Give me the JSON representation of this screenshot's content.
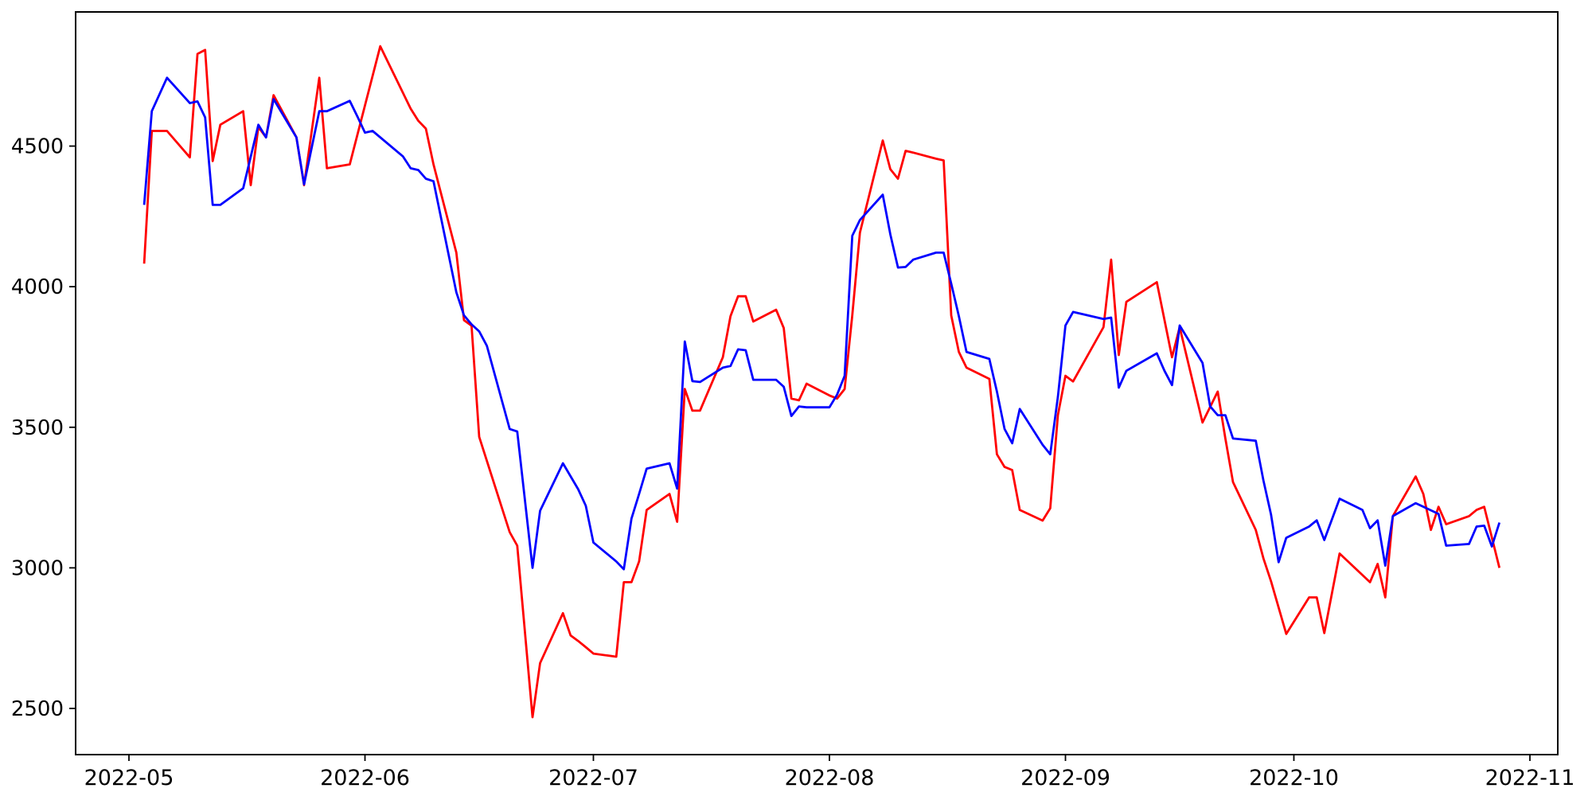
{
  "chart_data": {
    "type": "line",
    "title": "",
    "xlabel": "",
    "ylabel": "",
    "grid": false,
    "legend_position": "none",
    "background_color": "#ffffff",
    "axes_color": "#000000",
    "tick_label_color": "#000000",
    "xlim": [
      "2022-04-24",
      "2022-11-04"
    ],
    "ylim": [
      2336,
      4977
    ],
    "x_ticks": [
      {
        "label": "2022-05",
        "date": "2022-05-01"
      },
      {
        "label": "2022-06",
        "date": "2022-06-01"
      },
      {
        "label": "2022-07",
        "date": "2022-07-01"
      },
      {
        "label": "2022-08",
        "date": "2022-08-01"
      },
      {
        "label": "2022-09",
        "date": "2022-09-01"
      },
      {
        "label": "2022-10",
        "date": "2022-10-01"
      },
      {
        "label": "2022-11",
        "date": "2022-11-01"
      }
    ],
    "y_ticks": [
      {
        "label": "2500",
        "value": 2500
      },
      {
        "label": "3000",
        "value": 3000
      },
      {
        "label": "3500",
        "value": 3500
      },
      {
        "label": "4000",
        "value": 4000
      },
      {
        "label": "4500",
        "value": 4500
      }
    ],
    "series": [
      {
        "name": "red-series",
        "color": "#ff0000",
        "points": [
          [
            "2022-05-03",
            4082
          ],
          [
            "2022-05-04",
            4554
          ],
          [
            "2022-05-05",
            4554
          ],
          [
            "2022-05-06",
            4554
          ],
          [
            "2022-05-09",
            4460
          ],
          [
            "2022-05-10",
            4828
          ],
          [
            "2022-05-11",
            4842
          ],
          [
            "2022-05-12",
            4447
          ],
          [
            "2022-05-13",
            4576
          ],
          [
            "2022-05-16",
            4624
          ],
          [
            "2022-05-17",
            4361
          ],
          [
            "2022-05-18",
            4568
          ],
          [
            "2022-05-19",
            4531
          ],
          [
            "2022-05-20",
            4681
          ],
          [
            "2022-05-23",
            4531
          ],
          [
            "2022-05-24",
            4361
          ],
          [
            "2022-05-26",
            4743
          ],
          [
            "2022-05-27",
            4421
          ],
          [
            "2022-05-30",
            4435
          ],
          [
            "2022-06-03",
            4855
          ],
          [
            "2022-06-07",
            4633
          ],
          [
            "2022-06-08",
            4590
          ],
          [
            "2022-06-09",
            4562
          ],
          [
            "2022-06-10",
            4435
          ],
          [
            "2022-06-13",
            4121
          ],
          [
            "2022-06-14",
            3881
          ],
          [
            "2022-06-15",
            3861
          ],
          [
            "2022-06-16",
            3466
          ],
          [
            "2022-06-20",
            3127
          ],
          [
            "2022-06-21",
            3079
          ],
          [
            "2022-06-23",
            2469
          ],
          [
            "2022-06-24",
            2661
          ],
          [
            "2022-06-27",
            2839
          ],
          [
            "2022-06-28",
            2760
          ],
          [
            "2022-06-29",
            2740
          ],
          [
            "2022-06-30",
            2718
          ],
          [
            "2022-07-01",
            2695
          ],
          [
            "2022-07-04",
            2684
          ],
          [
            "2022-07-05",
            2949
          ],
          [
            "2022-07-06",
            2949
          ],
          [
            "2022-07-07",
            3023
          ],
          [
            "2022-07-08",
            3206
          ],
          [
            "2022-07-11",
            3263
          ],
          [
            "2022-07-12",
            3164
          ],
          [
            "2022-07-13",
            3636
          ],
          [
            "2022-07-14",
            3559
          ],
          [
            "2022-07-15",
            3559
          ],
          [
            "2022-07-18",
            3749
          ],
          [
            "2022-07-19",
            3895
          ],
          [
            "2022-07-20",
            3966
          ],
          [
            "2022-07-21",
            3966
          ],
          [
            "2022-07-22",
            3876
          ],
          [
            "2022-07-25",
            3918
          ],
          [
            "2022-07-26",
            3853
          ],
          [
            "2022-07-27",
            3602
          ],
          [
            "2022-07-28",
            3596
          ],
          [
            "2022-07-29",
            3655
          ],
          [
            "2022-08-01",
            3613
          ],
          [
            "2022-08-02",
            3602
          ],
          [
            "2022-08-03",
            3636
          ],
          [
            "2022-08-04",
            3898
          ],
          [
            "2022-08-05",
            4192
          ],
          [
            "2022-08-08",
            4520
          ],
          [
            "2022-08-09",
            4418
          ],
          [
            "2022-08-10",
            4384
          ],
          [
            "2022-08-11",
            4483
          ],
          [
            "2022-08-12",
            4477
          ],
          [
            "2022-08-15",
            4455
          ],
          [
            "2022-08-16",
            4449
          ],
          [
            "2022-08-17",
            3898
          ],
          [
            "2022-08-18",
            3768
          ],
          [
            "2022-08-19",
            3712
          ],
          [
            "2022-08-22",
            3672
          ],
          [
            "2022-08-23",
            3404
          ],
          [
            "2022-08-24",
            3359
          ],
          [
            "2022-08-25",
            3348
          ],
          [
            "2022-08-26",
            3206
          ],
          [
            "2022-08-29",
            3168
          ],
          [
            "2022-08-30",
            3212
          ],
          [
            "2022-08-31",
            3543
          ],
          [
            "2022-09-01",
            3683
          ],
          [
            "2022-09-02",
            3663
          ],
          [
            "2022-09-06",
            3856
          ],
          [
            "2022-09-07",
            4096
          ],
          [
            "2022-09-08",
            3757
          ],
          [
            "2022-09-09",
            3946
          ],
          [
            "2022-09-13",
            4016
          ],
          [
            "2022-09-15",
            3749
          ],
          [
            "2022-09-16",
            3856
          ],
          [
            "2022-09-19",
            3517
          ],
          [
            "2022-09-21",
            3627
          ],
          [
            "2022-09-22",
            3460
          ],
          [
            "2022-09-23",
            3305
          ],
          [
            "2022-09-26",
            3135
          ],
          [
            "2022-09-27",
            3034
          ],
          [
            "2022-09-28",
            2952
          ],
          [
            "2022-09-30",
            2765
          ],
          [
            "2022-10-03",
            2895
          ],
          [
            "2022-10-04",
            2895
          ],
          [
            "2022-10-05",
            2768
          ],
          [
            "2022-10-07",
            3051
          ],
          [
            "2022-10-11",
            2949
          ],
          [
            "2022-10-12",
            3014
          ],
          [
            "2022-10-13",
            2895
          ],
          [
            "2022-10-14",
            3184
          ],
          [
            "2022-10-17",
            3325
          ],
          [
            "2022-10-18",
            3263
          ],
          [
            "2022-10-19",
            3135
          ],
          [
            "2022-10-20",
            3217
          ],
          [
            "2022-10-21",
            3155
          ],
          [
            "2022-10-24",
            3184
          ],
          [
            "2022-10-25",
            3206
          ],
          [
            "2022-10-26",
            3217
          ],
          [
            "2022-10-28",
            3000
          ]
        ]
      },
      {
        "name": "blue-series",
        "color": "#0000ff",
        "points": [
          [
            "2022-05-03",
            4291
          ],
          [
            "2022-05-04",
            4624
          ],
          [
            "2022-05-06",
            4743
          ],
          [
            "2022-05-09",
            4653
          ],
          [
            "2022-05-10",
            4659
          ],
          [
            "2022-05-11",
            4602
          ],
          [
            "2022-05-12",
            4291
          ],
          [
            "2022-05-13",
            4291
          ],
          [
            "2022-05-16",
            4350
          ],
          [
            "2022-05-18",
            4576
          ],
          [
            "2022-05-19",
            4531
          ],
          [
            "2022-05-20",
            4667
          ],
          [
            "2022-05-23",
            4531
          ],
          [
            "2022-05-24",
            4364
          ],
          [
            "2022-05-26",
            4624
          ],
          [
            "2022-05-27",
            4624
          ],
          [
            "2022-05-30",
            4661
          ],
          [
            "2022-05-31",
            4605
          ],
          [
            "2022-06-01",
            4548
          ],
          [
            "2022-06-02",
            4554
          ],
          [
            "2022-06-06",
            4463
          ],
          [
            "2022-06-07",
            4421
          ],
          [
            "2022-06-08",
            4415
          ],
          [
            "2022-06-09",
            4384
          ],
          [
            "2022-06-10",
            4375
          ],
          [
            "2022-06-13",
            3980
          ],
          [
            "2022-06-14",
            3898
          ],
          [
            "2022-06-15",
            3866
          ],
          [
            "2022-06-16",
            3841
          ],
          [
            "2022-06-17",
            3790
          ],
          [
            "2022-06-20",
            3494
          ],
          [
            "2022-06-21",
            3485
          ],
          [
            "2022-06-23",
            3000
          ],
          [
            "2022-06-24",
            3203
          ],
          [
            "2022-06-27",
            3372
          ],
          [
            "2022-06-29",
            3280
          ],
          [
            "2022-06-30",
            3221
          ],
          [
            "2022-07-01",
            3090
          ],
          [
            "2022-07-04",
            3023
          ],
          [
            "2022-07-05",
            2995
          ],
          [
            "2022-07-06",
            3175
          ],
          [
            "2022-07-07",
            3263
          ],
          [
            "2022-07-08",
            3353
          ],
          [
            "2022-07-11",
            3372
          ],
          [
            "2022-07-12",
            3282
          ],
          [
            "2022-07-13",
            3805
          ],
          [
            "2022-07-14",
            3664
          ],
          [
            "2022-07-15",
            3661
          ],
          [
            "2022-07-18",
            3712
          ],
          [
            "2022-07-19",
            3718
          ],
          [
            "2022-07-20",
            3777
          ],
          [
            "2022-07-21",
            3774
          ],
          [
            "2022-07-22",
            3669
          ],
          [
            "2022-07-25",
            3669
          ],
          [
            "2022-07-26",
            3644
          ],
          [
            "2022-07-27",
            3540
          ],
          [
            "2022-07-28",
            3574
          ],
          [
            "2022-07-29",
            3571
          ],
          [
            "2022-08-01",
            3571
          ],
          [
            "2022-08-02",
            3616
          ],
          [
            "2022-08-03",
            3683
          ],
          [
            "2022-08-04",
            4181
          ],
          [
            "2022-08-05",
            4237
          ],
          [
            "2022-08-08",
            4327
          ],
          [
            "2022-08-09",
            4186
          ],
          [
            "2022-08-10",
            4068
          ],
          [
            "2022-08-11",
            4070
          ],
          [
            "2022-08-12",
            4096
          ],
          [
            "2022-08-15",
            4121
          ],
          [
            "2022-08-16",
            4121
          ],
          [
            "2022-08-17",
            4011
          ],
          [
            "2022-08-18",
            3895
          ],
          [
            "2022-08-19",
            3768
          ],
          [
            "2022-08-22",
            3743
          ],
          [
            "2022-08-23",
            3627
          ],
          [
            "2022-08-24",
            3494
          ],
          [
            "2022-08-25",
            3443
          ],
          [
            "2022-08-26",
            3565
          ],
          [
            "2022-08-29",
            3438
          ],
          [
            "2022-08-30",
            3404
          ],
          [
            "2022-08-31",
            3608
          ],
          [
            "2022-09-01",
            3862
          ],
          [
            "2022-09-02",
            3910
          ],
          [
            "2022-09-06",
            3885
          ],
          [
            "2022-09-07",
            3890
          ],
          [
            "2022-09-08",
            3641
          ],
          [
            "2022-09-09",
            3701
          ],
          [
            "2022-09-13",
            3763
          ],
          [
            "2022-09-14",
            3701
          ],
          [
            "2022-09-15",
            3650
          ],
          [
            "2022-09-16",
            3862
          ],
          [
            "2022-09-19",
            3729
          ],
          [
            "2022-09-20",
            3574
          ],
          [
            "2022-09-21",
            3543
          ],
          [
            "2022-09-22",
            3543
          ],
          [
            "2022-09-23",
            3460
          ],
          [
            "2022-09-26",
            3452
          ],
          [
            "2022-09-27",
            3311
          ],
          [
            "2022-09-28",
            3189
          ],
          [
            "2022-09-29",
            3020
          ],
          [
            "2022-09-30",
            3107
          ],
          [
            "2022-10-03",
            3147
          ],
          [
            "2022-10-04",
            3169
          ],
          [
            "2022-10-05",
            3099
          ],
          [
            "2022-10-07",
            3246
          ],
          [
            "2022-10-10",
            3206
          ],
          [
            "2022-10-11",
            3141
          ],
          [
            "2022-10-12",
            3169
          ],
          [
            "2022-10-13",
            3008
          ],
          [
            "2022-10-14",
            3184
          ],
          [
            "2022-10-17",
            3230
          ],
          [
            "2022-10-20",
            3192
          ],
          [
            "2022-10-21",
            3079
          ],
          [
            "2022-10-24",
            3085
          ],
          [
            "2022-10-25",
            3147
          ],
          [
            "2022-10-26",
            3150
          ],
          [
            "2022-10-27",
            3076
          ],
          [
            "2022-10-28",
            3161
          ]
        ]
      }
    ]
  }
}
